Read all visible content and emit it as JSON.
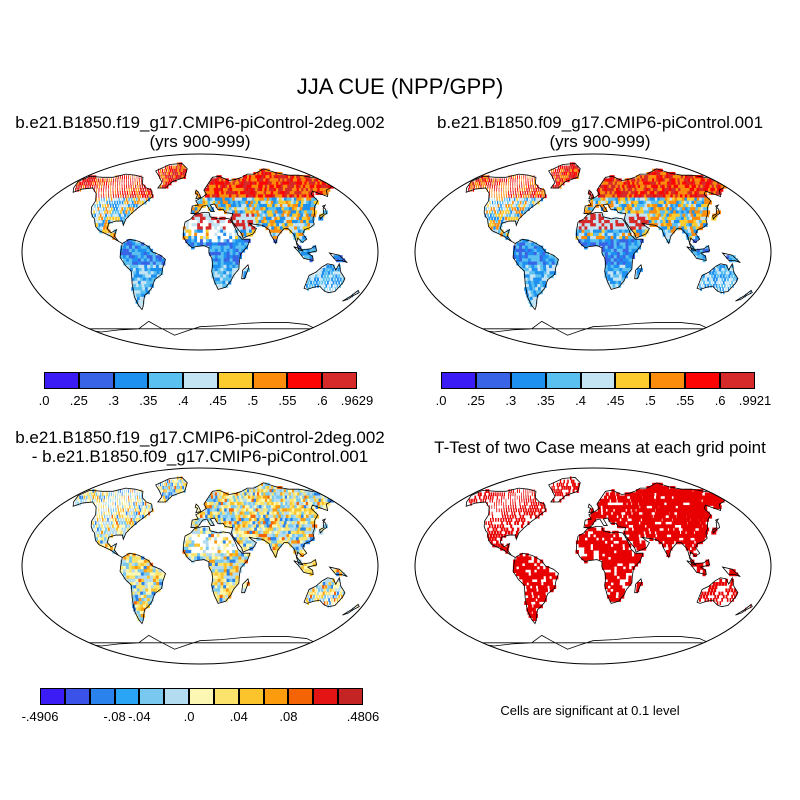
{
  "title": "JJA CUE (NPP/GPP)",
  "panels": [
    {
      "title_line1": "b.e21.B1850.f19_g17.CMIP6-piControl-2deg.002",
      "title_line2": "(yrs 900-999)"
    },
    {
      "title_line1": "b.e21.B1850.f09_g17.CMIP6-piControl.001",
      "title_line2": "(yrs 900-999)"
    },
    {
      "title_line1": "b.e21.B1850.f19_g17.CMIP6-piControl-2deg.002",
      "title_line2": "- b.e21.B1850.f09_g17.CMIP6-piControl.001"
    },
    {
      "title_line1": "T-Test of two Case means at each grid point",
      "title_line2": ""
    }
  ],
  "significance_note": "Cells are significant at 0.1 level",
  "colorbars": [
    {
      "colors": [
        "#3b1cf5",
        "#3a64e6",
        "#1e90f0",
        "#5ac0ef",
        "#c4e4f4",
        "#fccc2e",
        "#fc8c0c",
        "#fc0404",
        "#d62a2a"
      ],
      "labels": [
        ".0",
        ".25",
        ".3",
        ".35",
        ".4",
        ".45",
        ".5",
        ".55",
        ".6",
        ".9629"
      ]
    },
    {
      "colors": [
        "#3b1cf5",
        "#3a64e6",
        "#1e90f0",
        "#5ac0ef",
        "#c4e4f4",
        "#fccc2e",
        "#fc8c0c",
        "#fc0404",
        "#d62a2a"
      ],
      "labels": [
        ".0",
        ".25",
        ".3",
        ".35",
        ".4",
        ".45",
        ".5",
        ".55",
        ".6",
        ".9921"
      ]
    },
    {
      "colors": [
        "#3b1cf5",
        "#3a52e8",
        "#2a82ec",
        "#2aa4f4",
        "#78c8f0",
        "#b4dcf0",
        "#fcf8b4",
        "#fce46c",
        "#fcc42c",
        "#fc9c0c",
        "#f46404",
        "#e41414",
        "#c42424"
      ],
      "labels": [
        "-.4906",
        "-.08",
        "-.04",
        ".0",
        ".04",
        ".08",
        ".4806"
      ],
      "label_positions": [
        0,
        2,
        3,
        4,
        5,
        6,
        9
      ]
    }
  ],
  "map_legend": {
    "significant_color": "#e80000"
  }
}
